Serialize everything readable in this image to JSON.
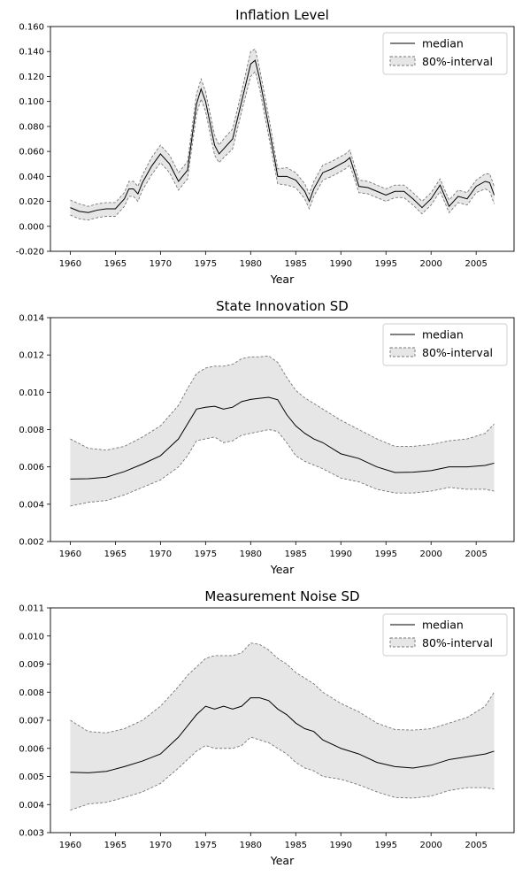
{
  "chart_data": [
    {
      "type": "line",
      "title": "Inflation Level",
      "xlabel": "Year",
      "ylabel": "",
      "xlim": [
        1957.8,
        2009.2
      ],
      "ylim": [
        -0.02,
        0.16
      ],
      "xticks": [
        1960,
        1965,
        1970,
        1975,
        1980,
        1985,
        1990,
        1995,
        2000,
        2005
      ],
      "xtick_labels": [
        "1960",
        "1965",
        "1970",
        "1975",
        "1980",
        "1985",
        "1990",
        "1995",
        "2000",
        "2005"
      ],
      "yticks": [
        -0.02,
        0.0,
        0.02,
        0.04,
        0.06,
        0.08,
        0.1,
        0.12,
        0.14,
        0.16
      ],
      "ytick_labels": [
        "-0.020",
        "0.000",
        "0.020",
        "0.040",
        "0.060",
        "0.080",
        "0.100",
        "0.120",
        "0.140",
        "0.160"
      ],
      "legend": {
        "position": "top-right",
        "entries": [
          "median",
          "80%-interval"
        ]
      },
      "x": [
        1960,
        1961,
        1962,
        1963,
        1964,
        1965,
        1966,
        1966.5,
        1967,
        1967.5,
        1968,
        1969,
        1970,
        1971,
        1972,
        1973,
        1974,
        1974.5,
        1975,
        1976,
        1976.5,
        1977,
        1978,
        1979,
        1980,
        1980.5,
        1981,
        1982,
        1983,
        1984,
        1985,
        1986,
        1986.5,
        1987,
        1988,
        1989,
        1990,
        1990.5,
        1991,
        1992,
        1993,
        1994,
        1995,
        1996,
        1997,
        1998,
        1999,
        2000,
        2001,
        2002,
        2003,
        2004,
        2005,
        2006,
        2006.5,
        2007
      ],
      "series": [
        {
          "name": "median",
          "values": [
            0.015,
            0.012,
            0.011,
            0.013,
            0.014,
            0.014,
            0.022,
            0.03,
            0.03,
            0.026,
            0.035,
            0.048,
            0.058,
            0.05,
            0.036,
            0.045,
            0.098,
            0.11,
            0.1,
            0.065,
            0.058,
            0.062,
            0.07,
            0.1,
            0.13,
            0.133,
            0.118,
            0.08,
            0.04,
            0.04,
            0.037,
            0.028,
            0.02,
            0.03,
            0.043,
            0.046,
            0.05,
            0.052,
            0.055,
            0.032,
            0.031,
            0.028,
            0.025,
            0.028,
            0.028,
            0.022,
            0.015,
            0.022,
            0.033,
            0.016,
            0.024,
            0.022,
            0.032,
            0.036,
            0.035,
            0.025
          ]
        },
        {
          "name": "80%-interval upper",
          "values": [
            0.021,
            0.018,
            0.016,
            0.018,
            0.019,
            0.019,
            0.027,
            0.036,
            0.036,
            0.032,
            0.041,
            0.055,
            0.065,
            0.057,
            0.043,
            0.052,
            0.106,
            0.118,
            0.108,
            0.073,
            0.065,
            0.07,
            0.078,
            0.108,
            0.14,
            0.142,
            0.126,
            0.088,
            0.046,
            0.047,
            0.043,
            0.034,
            0.026,
            0.036,
            0.049,
            0.052,
            0.056,
            0.058,
            0.061,
            0.037,
            0.036,
            0.033,
            0.03,
            0.033,
            0.033,
            0.027,
            0.02,
            0.027,
            0.038,
            0.021,
            0.029,
            0.027,
            0.037,
            0.042,
            0.042,
            0.032
          ]
        },
        {
          "name": "80%-interval lower",
          "values": [
            0.009,
            0.006,
            0.005,
            0.007,
            0.008,
            0.008,
            0.016,
            0.024,
            0.024,
            0.02,
            0.029,
            0.041,
            0.051,
            0.043,
            0.029,
            0.038,
            0.09,
            0.102,
            0.092,
            0.057,
            0.051,
            0.055,
            0.062,
            0.092,
            0.12,
            0.124,
            0.11,
            0.072,
            0.034,
            0.033,
            0.031,
            0.022,
            0.014,
            0.024,
            0.037,
            0.04,
            0.044,
            0.046,
            0.049,
            0.027,
            0.026,
            0.023,
            0.02,
            0.023,
            0.023,
            0.017,
            0.01,
            0.017,
            0.028,
            0.011,
            0.019,
            0.017,
            0.027,
            0.03,
            0.028,
            0.018
          ]
        }
      ]
    },
    {
      "type": "line",
      "title": "State Innovation SD",
      "xlabel": "Year",
      "ylabel": "",
      "xlim": [
        1957.8,
        2009.2
      ],
      "ylim": [
        0.002,
        0.014
      ],
      "xticks": [
        1960,
        1965,
        1970,
        1975,
        1980,
        1985,
        1990,
        1995,
        2000,
        2005
      ],
      "xtick_labels": [
        "1960",
        "1965",
        "1970",
        "1975",
        "1980",
        "1985",
        "1990",
        "1995",
        "2000",
        "2005"
      ],
      "yticks": [
        0.002,
        0.004,
        0.006,
        0.008,
        0.01,
        0.012,
        0.014
      ],
      "ytick_labels": [
        "0.002",
        "0.004",
        "0.006",
        "0.008",
        "0.010",
        "0.012",
        "0.014"
      ],
      "legend": {
        "position": "top-right",
        "entries": [
          "median",
          "80%-interval"
        ]
      },
      "x": [
        1960,
        1962,
        1964,
        1966,
        1968,
        1970,
        1972,
        1973,
        1974,
        1975,
        1976,
        1977,
        1978,
        1979,
        1980,
        1981,
        1982,
        1983,
        1984,
        1985,
        1986,
        1987,
        1988,
        1990,
        1992,
        1994,
        1996,
        1998,
        2000,
        2002,
        2004,
        2006,
        2007
      ],
      "series": [
        {
          "name": "median",
          "values": [
            0.00535,
            0.00537,
            0.00545,
            0.00575,
            0.00615,
            0.0066,
            0.0075,
            0.0083,
            0.0091,
            0.0092,
            0.00925,
            0.0091,
            0.0092,
            0.0095,
            0.00962,
            0.00968,
            0.00973,
            0.0096,
            0.0088,
            0.0082,
            0.0078,
            0.0075,
            0.0073,
            0.0067,
            0.00645,
            0.006,
            0.0057,
            0.00572,
            0.0058,
            0.006,
            0.006,
            0.00608,
            0.0062
          ]
        },
        {
          "name": "80%-interval upper",
          "values": [
            0.0075,
            0.007,
            0.0069,
            0.0071,
            0.0076,
            0.0082,
            0.0093,
            0.0102,
            0.011,
            0.0113,
            0.0114,
            0.0114,
            0.0115,
            0.0118,
            0.0119,
            0.0119,
            0.01195,
            0.0116,
            0.0108,
            0.0101,
            0.0097,
            0.0094,
            0.0091,
            0.0085,
            0.008,
            0.0075,
            0.0071,
            0.0071,
            0.0072,
            0.0074,
            0.0075,
            0.0078,
            0.0083
          ]
        },
        {
          "name": "80%-interval lower",
          "values": [
            0.0039,
            0.0041,
            0.0042,
            0.0045,
            0.0049,
            0.0053,
            0.006,
            0.0066,
            0.0074,
            0.0075,
            0.0076,
            0.0073,
            0.0074,
            0.0077,
            0.0078,
            0.0079,
            0.008,
            0.0079,
            0.0073,
            0.0066,
            0.0063,
            0.0061,
            0.0059,
            0.0054,
            0.0052,
            0.0048,
            0.0046,
            0.0046,
            0.0047,
            0.0049,
            0.0048,
            0.0048,
            0.0047
          ]
        }
      ]
    },
    {
      "type": "line",
      "title": "Measurement Noise SD",
      "xlabel": "Year",
      "ylabel": "",
      "xlim": [
        1957.8,
        2009.2
      ],
      "ylim": [
        0.003,
        0.011
      ],
      "xticks": [
        1960,
        1965,
        1970,
        1975,
        1980,
        1985,
        1990,
        1995,
        2000,
        2005
      ],
      "xtick_labels": [
        "1960",
        "1965",
        "1970",
        "1975",
        "1980",
        "1985",
        "1990",
        "1995",
        "2000",
        "2005"
      ],
      "yticks": [
        0.003,
        0.004,
        0.005,
        0.006,
        0.007,
        0.008,
        0.009,
        0.01,
        0.011
      ],
      "ytick_labels": [
        "0.003",
        "0.004",
        "0.005",
        "0.006",
        "0.007",
        "0.008",
        "0.009",
        "0.010",
        "0.011"
      ],
      "legend": {
        "position": "top-right",
        "entries": [
          "median",
          "80%-interval"
        ]
      },
      "x": [
        1960,
        1962,
        1964,
        1966,
        1968,
        1970,
        1972,
        1973,
        1974,
        1975,
        1976,
        1977,
        1978,
        1979,
        1980,
        1981,
        1982,
        1983,
        1984,
        1985,
        1986,
        1987,
        1988,
        1990,
        1992,
        1994,
        1996,
        1998,
        2000,
        2002,
        2004,
        2006,
        2007
      ],
      "series": [
        {
          "name": "median",
          "values": [
            0.00515,
            0.00513,
            0.00518,
            0.00535,
            0.00555,
            0.0058,
            0.0064,
            0.0068,
            0.0072,
            0.0075,
            0.0074,
            0.0075,
            0.0074,
            0.0075,
            0.0078,
            0.0078,
            0.0077,
            0.0074,
            0.0072,
            0.0069,
            0.0067,
            0.0066,
            0.0063,
            0.006,
            0.0058,
            0.0055,
            0.00535,
            0.0053,
            0.0054,
            0.0056,
            0.0057,
            0.0058,
            0.0059
          ]
        },
        {
          "name": "80%-interval upper",
          "values": [
            0.007,
            0.0066,
            0.00655,
            0.0067,
            0.007,
            0.0075,
            0.0082,
            0.0086,
            0.0089,
            0.0092,
            0.0093,
            0.0093,
            0.0093,
            0.0094,
            0.00975,
            0.0097,
            0.0095,
            0.0092,
            0.009,
            0.0087,
            0.0085,
            0.0083,
            0.008,
            0.0076,
            0.0073,
            0.0069,
            0.00667,
            0.00665,
            0.0067,
            0.0069,
            0.0071,
            0.0075,
            0.008
          ]
        },
        {
          "name": "80%-interval lower",
          "values": [
            0.0038,
            0.00402,
            0.00408,
            0.00425,
            0.00445,
            0.00475,
            0.0053,
            0.0056,
            0.0059,
            0.0061,
            0.006,
            0.006,
            0.006,
            0.0061,
            0.0064,
            0.0063,
            0.0062,
            0.006,
            0.0058,
            0.0055,
            0.0053,
            0.0052,
            0.005,
            0.0049,
            0.0047,
            0.00445,
            0.00425,
            0.00423,
            0.0043,
            0.0045,
            0.0046,
            0.0046,
            0.00455
          ]
        }
      ]
    }
  ]
}
